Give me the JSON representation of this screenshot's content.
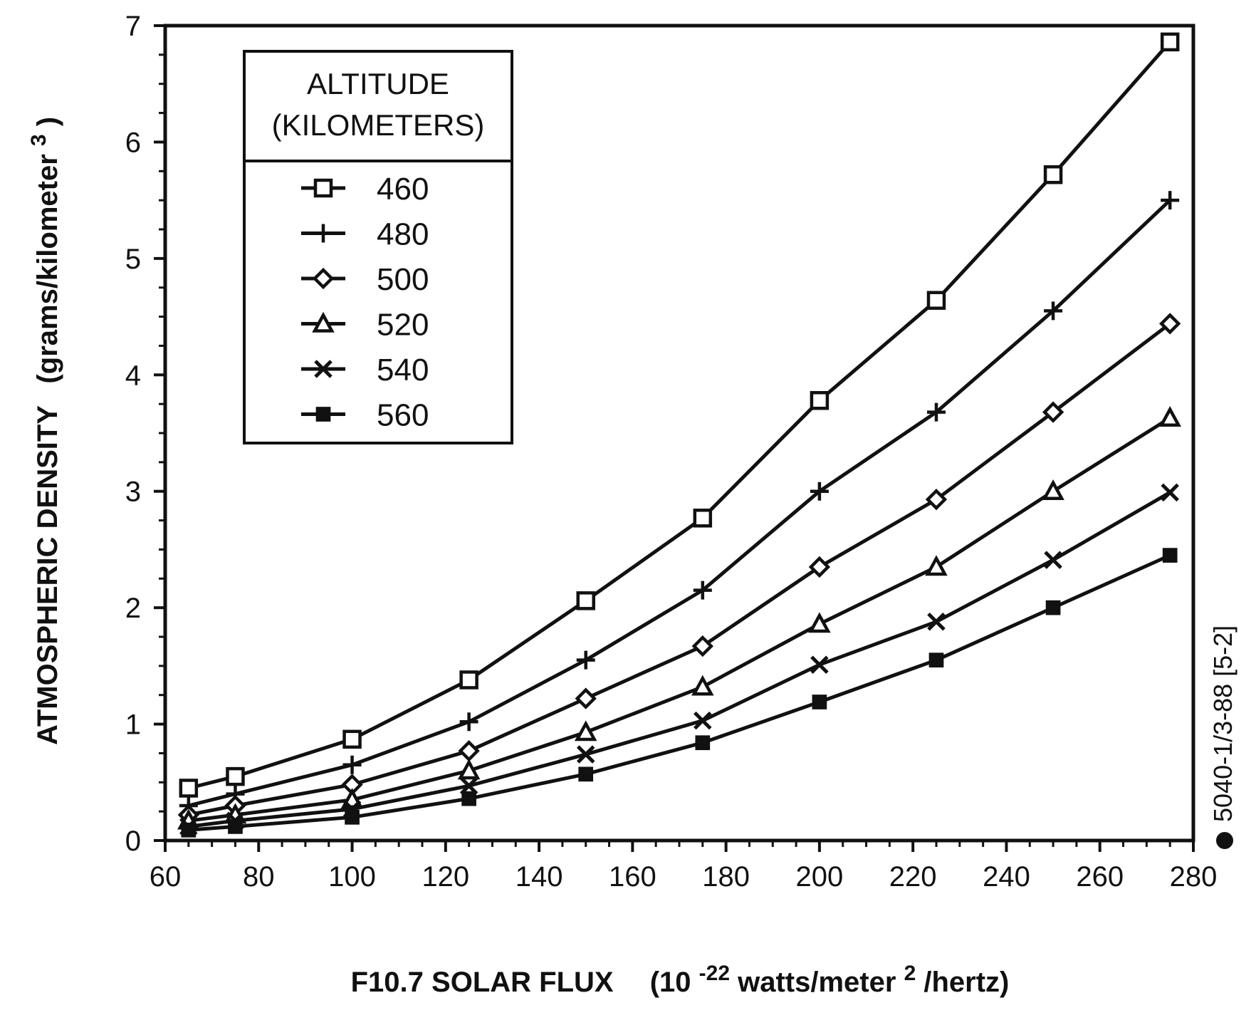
{
  "chart_data": {
    "type": "line",
    "xlabel_main": "F10.7 SOLAR FLUX",
    "xlabel_unit_pre": "(10",
    "xlabel_unit_exp": "-22",
    "xlabel_unit_mid": " watts/meter",
    "xlabel_unit_exp2": "2",
    "xlabel_unit_post": "/hertz)",
    "ylabel_main": "ATMOSPHERIC DENSITY",
    "ylabel_unit_pre": "(grams/kilometer",
    "ylabel_unit_exp": "3",
    "ylabel_unit_post": ")",
    "xlim": [
      60,
      280
    ],
    "ylim": [
      0,
      7
    ],
    "xticks": [
      60,
      80,
      100,
      120,
      140,
      160,
      180,
      200,
      220,
      240,
      260,
      280
    ],
    "yticks": [
      0,
      1,
      2,
      3,
      4,
      5,
      6,
      7
    ],
    "legend_title_line1": "ALTITUDE",
    "legend_title_line2": "(KILOMETERS)",
    "legend_position": "top-left",
    "grid": false,
    "side_note": "5040-1/3-88 [5-2]",
    "x": [
      65,
      75,
      100,
      125,
      150,
      175,
      200,
      225,
      250,
      275
    ],
    "series": [
      {
        "name": "460",
        "marker": "square-open",
        "values": [
          0.45,
          0.55,
          0.87,
          1.38,
          2.06,
          2.77,
          3.78,
          4.64,
          5.72,
          6.86
        ]
      },
      {
        "name": "480",
        "marker": "plus",
        "values": [
          0.3,
          0.4,
          0.65,
          1.02,
          1.55,
          2.15,
          3.0,
          3.68,
          4.55,
          5.5
        ]
      },
      {
        "name": "500",
        "marker": "diamond-open",
        "values": [
          0.22,
          0.3,
          0.48,
          0.77,
          1.22,
          1.67,
          2.35,
          2.93,
          3.68,
          4.44
        ]
      },
      {
        "name": "520",
        "marker": "triangle-open",
        "values": [
          0.17,
          0.22,
          0.35,
          0.6,
          0.93,
          1.32,
          1.86,
          2.35,
          3.0,
          3.63
        ]
      },
      {
        "name": "540",
        "marker": "x",
        "values": [
          0.12,
          0.17,
          0.27,
          0.47,
          0.74,
          1.03,
          1.51,
          1.88,
          2.41,
          2.99
        ]
      },
      {
        "name": "560",
        "marker": "square-filled",
        "values": [
          0.09,
          0.12,
          0.2,
          0.36,
          0.57,
          0.84,
          1.19,
          1.55,
          2.0,
          2.45
        ]
      }
    ]
  }
}
